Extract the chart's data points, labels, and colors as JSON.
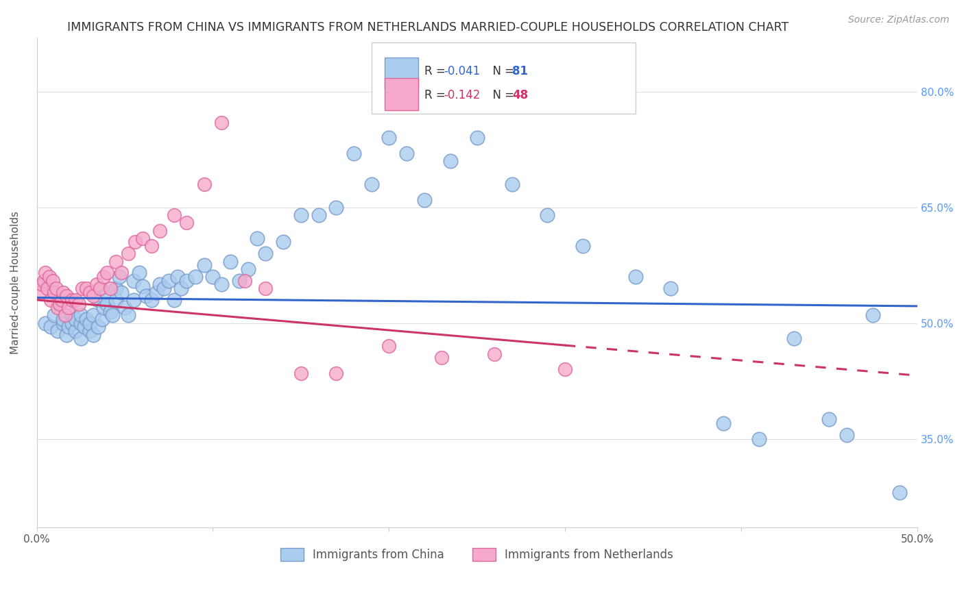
{
  "title": "IMMIGRANTS FROM CHINA VS IMMIGRANTS FROM NETHERLANDS MARRIED-COUPLE HOUSEHOLDS CORRELATION CHART",
  "source": "Source: ZipAtlas.com",
  "ylabel": "Married-couple Households",
  "x_min": 0.0,
  "x_max": 0.5,
  "y_min": 0.235,
  "y_max": 0.87,
  "y_ticks": [
    0.35,
    0.5,
    0.65,
    0.8
  ],
  "y_tick_labels": [
    "35.0%",
    "50.0%",
    "65.0%",
    "80.0%"
  ],
  "china_color": "#aaccee",
  "china_edge_color": "#7799cc",
  "netherlands_color": "#f5aacc",
  "netherlands_edge_color": "#dd6699",
  "trend_china_color": "#3366cc",
  "trend_netherlands_color": "#cc3366",
  "R_china": -0.041,
  "N_china": 81,
  "R_netherlands": -0.142,
  "N_netherlands": 48,
  "legend_label_china": "Immigrants from China",
  "legend_label_netherlands": "Immigrants from Netherlands",
  "background_color": "#ffffff",
  "grid_color": "#e0e0e0",
  "title_fontsize": 12.5,
  "axis_label_fontsize": 11,
  "tick_fontsize": 11,
  "source_fontsize": 10,
  "trend_china_intercept": 0.533,
  "trend_china_slope": -0.022,
  "trend_neth_intercept": 0.53,
  "trend_neth_slope": -0.196,
  "china_points_x": [
    0.005,
    0.008,
    0.01,
    0.012,
    0.015,
    0.015,
    0.017,
    0.018,
    0.02,
    0.02,
    0.022,
    0.022,
    0.025,
    0.025,
    0.025,
    0.027,
    0.028,
    0.03,
    0.03,
    0.032,
    0.032,
    0.035,
    0.035,
    0.037,
    0.038,
    0.04,
    0.04,
    0.042,
    0.043,
    0.045,
    0.045,
    0.047,
    0.048,
    0.05,
    0.052,
    0.055,
    0.055,
    0.058,
    0.06,
    0.062,
    0.065,
    0.068,
    0.07,
    0.072,
    0.075,
    0.078,
    0.08,
    0.082,
    0.085,
    0.09,
    0.095,
    0.1,
    0.105,
    0.11,
    0.115,
    0.12,
    0.125,
    0.13,
    0.14,
    0.15,
    0.16,
    0.17,
    0.18,
    0.19,
    0.2,
    0.21,
    0.22,
    0.235,
    0.25,
    0.27,
    0.29,
    0.31,
    0.34,
    0.36,
    0.39,
    0.41,
    0.43,
    0.45,
    0.46,
    0.475,
    0.49
  ],
  "china_points_y": [
    0.5,
    0.495,
    0.51,
    0.49,
    0.5,
    0.505,
    0.485,
    0.495,
    0.51,
    0.5,
    0.49,
    0.505,
    0.48,
    0.5,
    0.51,
    0.495,
    0.505,
    0.49,
    0.5,
    0.51,
    0.485,
    0.53,
    0.495,
    0.505,
    0.52,
    0.54,
    0.525,
    0.515,
    0.51,
    0.545,
    0.53,
    0.56,
    0.54,
    0.52,
    0.51,
    0.555,
    0.53,
    0.565,
    0.548,
    0.535,
    0.53,
    0.54,
    0.55,
    0.545,
    0.555,
    0.53,
    0.56,
    0.545,
    0.555,
    0.56,
    0.575,
    0.56,
    0.55,
    0.58,
    0.555,
    0.57,
    0.61,
    0.59,
    0.605,
    0.64,
    0.64,
    0.65,
    0.72,
    0.68,
    0.74,
    0.72,
    0.66,
    0.71,
    0.74,
    0.68,
    0.64,
    0.6,
    0.56,
    0.545,
    0.37,
    0.35,
    0.48,
    0.375,
    0.355,
    0.51,
    0.28
  ],
  "netherlands_points_x": [
    0.002,
    0.003,
    0.004,
    0.005,
    0.006,
    0.007,
    0.008,
    0.009,
    0.01,
    0.011,
    0.012,
    0.013,
    0.014,
    0.015,
    0.016,
    0.017,
    0.018,
    0.02,
    0.022,
    0.024,
    0.026,
    0.028,
    0.03,
    0.032,
    0.034,
    0.036,
    0.038,
    0.04,
    0.042,
    0.045,
    0.048,
    0.052,
    0.056,
    0.06,
    0.065,
    0.07,
    0.078,
    0.085,
    0.095,
    0.105,
    0.118,
    0.13,
    0.15,
    0.17,
    0.2,
    0.23,
    0.26,
    0.3
  ],
  "netherlands_points_y": [
    0.54,
    0.55,
    0.555,
    0.565,
    0.545,
    0.56,
    0.53,
    0.555,
    0.54,
    0.545,
    0.52,
    0.525,
    0.53,
    0.54,
    0.51,
    0.535,
    0.52,
    0.53,
    0.53,
    0.525,
    0.545,
    0.545,
    0.54,
    0.535,
    0.55,
    0.545,
    0.56,
    0.565,
    0.545,
    0.58,
    0.565,
    0.59,
    0.605,
    0.61,
    0.6,
    0.62,
    0.64,
    0.63,
    0.68,
    0.76,
    0.555,
    0.545,
    0.435,
    0.435,
    0.47,
    0.455,
    0.46,
    0.44
  ]
}
